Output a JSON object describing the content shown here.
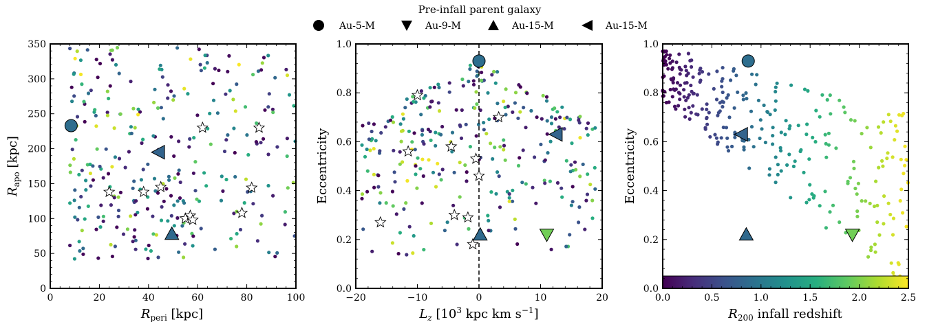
{
  "legend": {
    "title": "Pre-infall parent galaxy",
    "entries": [
      {
        "label": "Au-5-M",
        "marker": "circle"
      },
      {
        "label": "Au-9-M",
        "marker": "triangle-down"
      },
      {
        "label": "Au-15-M",
        "marker": "triangle-up"
      },
      {
        "label": "Au-15-M",
        "marker": "triangle-left"
      }
    ]
  },
  "colormap": {
    "name": "viridis",
    "stops": [
      "#440154",
      "#472d7b",
      "#3b528b",
      "#2c728e",
      "#21918c",
      "#28ae80",
      "#5ec962",
      "#addc30",
      "#fde725"
    ]
  },
  "chart_data": [
    {
      "type": "scatter",
      "xlabel": "R_peri [kpc]",
      "ylabel": "R_apo [kpc]",
      "xlim": [
        0,
        100
      ],
      "ylim": [
        0,
        350
      ],
      "xticks": [
        0,
        20,
        40,
        60,
        80,
        100
      ],
      "yticks": [
        0,
        50,
        100,
        150,
        200,
        250,
        300,
        350
      ],
      "vline": null,
      "stars": [
        [
          24,
          138
        ],
        [
          38,
          138
        ],
        [
          45,
          145
        ],
        [
          55,
          100
        ],
        [
          57,
          104
        ],
        [
          58,
          98
        ],
        [
          62,
          230
        ],
        [
          78,
          108
        ],
        [
          82,
          144
        ],
        [
          85,
          230
        ]
      ],
      "special": [
        {
          "marker": "circle",
          "x": 8.5,
          "y": 233,
          "z": 0.9
        },
        {
          "marker": "triangle-up",
          "x": 49.5,
          "y": 78,
          "z": 0.85
        },
        {
          "marker": "triangle-left",
          "x": 44,
          "y": 195,
          "z": 0.8
        }
      ]
    },
    {
      "type": "scatter",
      "xlabel": "L_z [10^3 kpc km s^-1]",
      "ylabel": "Eccentricity",
      "xlim": [
        -20,
        20
      ],
      "ylim": [
        0,
        1
      ],
      "xticks": [
        -20,
        -10,
        0,
        10,
        20
      ],
      "yticks": [
        0.0,
        0.2,
        0.4,
        0.6,
        0.8,
        1.0
      ],
      "vline": 0,
      "stars": [
        [
          -16,
          0.27
        ],
        [
          -10,
          0.79
        ],
        [
          -11.5,
          0.56
        ],
        [
          -4.5,
          0.58
        ],
        [
          -4,
          0.3
        ],
        [
          -1.8,
          0.29
        ],
        [
          -1,
          0.18
        ],
        [
          -0.5,
          0.53
        ],
        [
          0,
          0.46
        ],
        [
          3.2,
          0.7
        ]
      ],
      "special": [
        {
          "marker": "circle",
          "x": 0,
          "y": 0.93,
          "z": 0.9
        },
        {
          "marker": "triangle-down",
          "x": 11,
          "y": 0.22,
          "z": 1.95
        },
        {
          "marker": "triangle-up",
          "x": 0.2,
          "y": 0.22,
          "z": 0.85
        },
        {
          "marker": "triangle-left",
          "x": 12.5,
          "y": 0.63,
          "z": 0.8
        }
      ]
    },
    {
      "type": "scatter",
      "xlabel": "R_200 infall redshift",
      "ylabel": "Eccentricity",
      "xlim": [
        0,
        2.5
      ],
      "ylim": [
        0,
        1
      ],
      "xticks": [
        0.0,
        0.5,
        1.0,
        1.5,
        2.0,
        2.5
      ],
      "yticks": [
        0.0,
        0.2,
        0.4,
        0.6,
        0.8,
        1.0
      ],
      "vline": null,
      "stars": [],
      "special": [
        {
          "marker": "circle",
          "x": 0.87,
          "y": 0.93,
          "z": 0.9
        },
        {
          "marker": "triangle-down",
          "x": 1.93,
          "y": 0.22,
          "z": 1.95
        },
        {
          "marker": "triangle-up",
          "x": 0.85,
          "y": 0.22,
          "z": 0.85
        },
        {
          "marker": "triangle-left",
          "x": 0.8,
          "y": 0.63,
          "z": 0.8
        }
      ],
      "colorbar": {
        "range": [
          0,
          2.5
        ],
        "ticks": [
          0.0,
          0.5,
          1.0,
          1.5,
          2.0,
          2.5
        ],
        "placement": "inset-bottom"
      }
    }
  ]
}
